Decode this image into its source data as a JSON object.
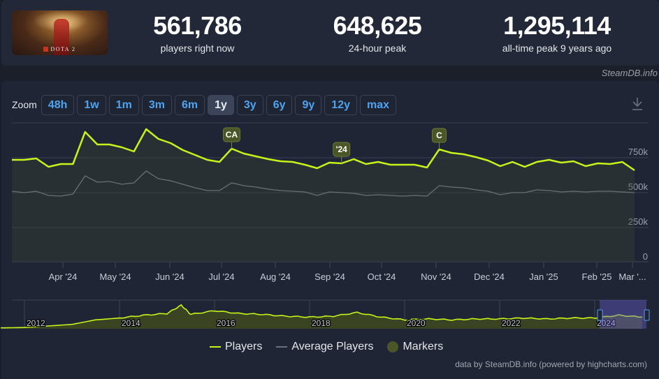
{
  "header": {
    "game_name": "DOTA 2",
    "stats": [
      {
        "value": "561,786",
        "label": "players right now"
      },
      {
        "value": "648,625",
        "label": "24-hour peak"
      },
      {
        "value": "1,295,114",
        "label": "all-time peak 9 years ago"
      }
    ],
    "brand": "SteamDB.info"
  },
  "zoom": {
    "label": "Zoom",
    "options": [
      "48h",
      "1w",
      "1m",
      "3m",
      "6m",
      "1y",
      "3y",
      "6y",
      "9y",
      "12y",
      "max"
    ],
    "selected": "1y"
  },
  "icons": {
    "download": "download-icon"
  },
  "legend": {
    "players": "Players",
    "average": "Average Players",
    "markers": "Markers"
  },
  "credit": "data by SteamDB.info (powered by highcharts.com)",
  "colors": {
    "players": "#c6f31a",
    "average": "#6b6f78",
    "marker": "#4a5628",
    "background": "#202535",
    "zoom_text": "#4fa3f0"
  },
  "chart_data": [
    {
      "type": "line",
      "title": "Dota 2 concurrent players (1y)",
      "xlabel": "",
      "ylabel": "Players",
      "ylim": [
        0,
        1000000
      ],
      "y_ticks": [
        "0",
        "250k",
        "500k",
        "750k"
      ],
      "x_ticks": [
        "Apr '24",
        "May '24",
        "Jun '24",
        "Jul '24",
        "Aug '24",
        "Sep '24",
        "Oct '24",
        "Nov '24",
        "Dec '24",
        "Jan '25",
        "Feb '25",
        "Mar '..."
      ],
      "grid": true,
      "legend_position": "bottom",
      "series": [
        {
          "name": "Players",
          "values": [
            730000,
            730000,
            740000,
            680000,
            700000,
            700000,
            930000,
            840000,
            840000,
            820000,
            790000,
            950000,
            880000,
            850000,
            800000,
            765000,
            730000,
            715000,
            810000,
            775000,
            755000,
            735000,
            720000,
            715000,
            695000,
            670000,
            710000,
            705000,
            735000,
            700000,
            715000,
            695000,
            695000,
            695000,
            675000,
            805000,
            780000,
            770000,
            750000,
            725000,
            685000,
            715000,
            680000,
            715000,
            730000,
            710000,
            720000,
            685000,
            705000,
            700000,
            715000,
            655000
          ]
        },
        {
          "name": "Average Players",
          "values": [
            505000,
            495000,
            505000,
            475000,
            470000,
            485000,
            615000,
            570000,
            575000,
            555000,
            565000,
            650000,
            595000,
            580000,
            555000,
            530000,
            510000,
            510000,
            565000,
            545000,
            535000,
            520000,
            510000,
            505000,
            500000,
            475000,
            500000,
            495000,
            490000,
            475000,
            480000,
            475000,
            470000,
            475000,
            470000,
            545000,
            535000,
            530000,
            515000,
            505000,
            480000,
            495000,
            495000,
            515000,
            510000,
            500000,
            505000,
            500000,
            505000,
            505000,
            500000,
            495000
          ]
        }
      ],
      "markers": [
        {
          "label": "CA",
          "index": 18
        },
        {
          "label": "'24",
          "index": 27
        },
        {
          "label": "C",
          "index": 35
        }
      ]
    },
    {
      "type": "area",
      "title": "Navigator (all time)",
      "x_ticks": [
        "2012",
        "2014",
        "2016",
        "2018",
        "2020",
        "2022",
        "2024"
      ],
      "series": [
        {
          "name": "Players",
          "x": [
            2011.5,
            2012,
            2013,
            2013.5,
            2014,
            2014.5,
            2015,
            2015.3,
            2015.5,
            2016,
            2016.5,
            2017,
            2017.5,
            2018,
            2018.5,
            2019,
            2019.5,
            2020,
            2020.5,
            2021,
            2021.5,
            2022,
            2022.5,
            2023,
            2023.5,
            2024,
            2024.5,
            2025
          ],
          "values": [
            10000,
            30000,
            200000,
            450000,
            550000,
            700000,
            800000,
            1250000,
            750000,
            950000,
            800000,
            750000,
            650000,
            600000,
            650000,
            850000,
            600000,
            450000,
            500000,
            450000,
            500000,
            500000,
            550000,
            500000,
            550000,
            550000,
            700000,
            600000
          ]
        }
      ],
      "selection": [
        "2024-03",
        "2025-03"
      ]
    }
  ]
}
